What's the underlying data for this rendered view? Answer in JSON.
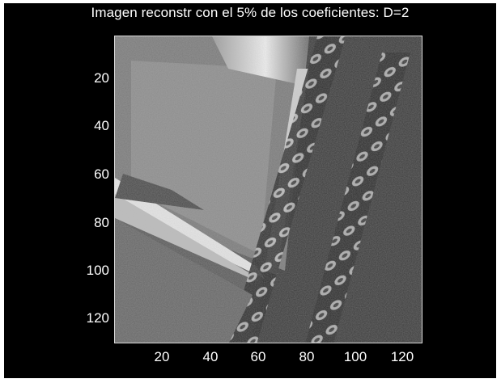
{
  "title": "Imagen reconstr con el 5% de los coeficientes: D=2",
  "axes": {
    "x_ticks": [
      "20",
      "40",
      "60",
      "80",
      "100",
      "120"
    ],
    "y_ticks": [
      "20",
      "40",
      "60",
      "80",
      "100",
      "120"
    ],
    "xlim": [
      1,
      128
    ],
    "ylim": [
      1,
      128
    ]
  },
  "colors": {
    "background": "#000000",
    "text": "#ffffff",
    "axis": "#d9d9d9"
  }
}
